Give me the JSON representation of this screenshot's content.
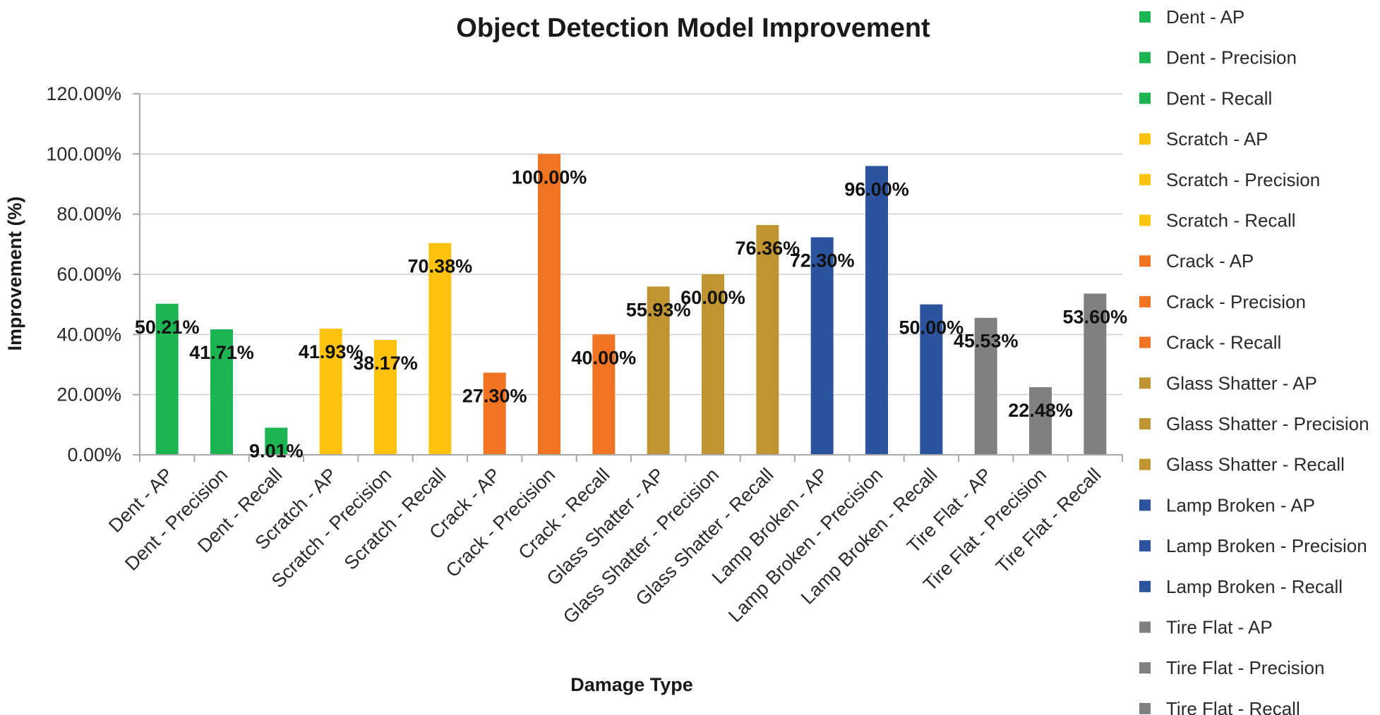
{
  "chart_data": {
    "type": "bar",
    "title": "Object Detection Model Improvement",
    "xlabel": "Damage Type",
    "ylabel": "Improvement (%)",
    "ylim": [
      0,
      120
    ],
    "yticks": [
      "0.00%",
      "20.00%",
      "40.00%",
      "60.00%",
      "80.00%",
      "100.00%",
      "120.00%"
    ],
    "ytick_values": [
      0,
      20,
      40,
      60,
      80,
      100,
      120
    ],
    "grid": true,
    "legend_position": "right",
    "categories": [
      "Dent - AP",
      "Dent - Precision",
      "Dent - Recall",
      "Scratch - AP",
      "Scratch - Precision",
      "Scratch - Recall",
      "Crack - AP",
      "Crack - Precision",
      "Crack - Recall",
      "Glass Shatter - AP",
      "Glass Shatter - Precision",
      "Glass Shatter - Recall",
      "Lamp Broken - AP",
      "Lamp Broken - Precision",
      "Lamp Broken - Recall",
      "Tire Flat - AP",
      "Tire Flat - Precision",
      "Tire Flat - Recall"
    ],
    "values": [
      50.21,
      41.71,
      9.01,
      41.93,
      38.17,
      70.38,
      27.3,
      100.0,
      40.0,
      55.93,
      60.0,
      76.36,
      72.3,
      96.0,
      50.0,
      45.53,
      22.48,
      53.6
    ],
    "data_labels": [
      "50.21%",
      "41.71%",
      "9.01%",
      "41.93%",
      "38.17%",
      "70.38%",
      "27.30%",
      "100.00%",
      "40.00%",
      "55.93%",
      "60.00%",
      "76.36%",
      "72.30%",
      "96.00%",
      "50.00%",
      "45.53%",
      "22.48%",
      "53.60%"
    ],
    "colors": [
      "#1db554",
      "#1db554",
      "#1db554",
      "#ffc20e",
      "#ffc20e",
      "#ffc20e",
      "#f07422",
      "#f07422",
      "#f07422",
      "#c09431",
      "#c09431",
      "#c09431",
      "#2b539e",
      "#2b539e",
      "#2b539e",
      "#808080",
      "#808080",
      "#808080"
    ],
    "legend": [
      "Dent - AP",
      "Dent - Precision",
      "Dent - Recall",
      "Scratch - AP",
      "Scratch - Precision",
      "Scratch - Recall",
      "Crack - AP",
      "Crack - Precision",
      "Crack - Recall",
      "Glass Shatter - AP",
      "Glass Shatter - Precision",
      "Glass Shatter - Recall",
      "Lamp Broken - AP",
      "Lamp Broken - Precision",
      "Lamp Broken - Recall",
      "Tire Flat - AP",
      "Tire Flat - Precision",
      "Tire Flat - Recall"
    ]
  }
}
